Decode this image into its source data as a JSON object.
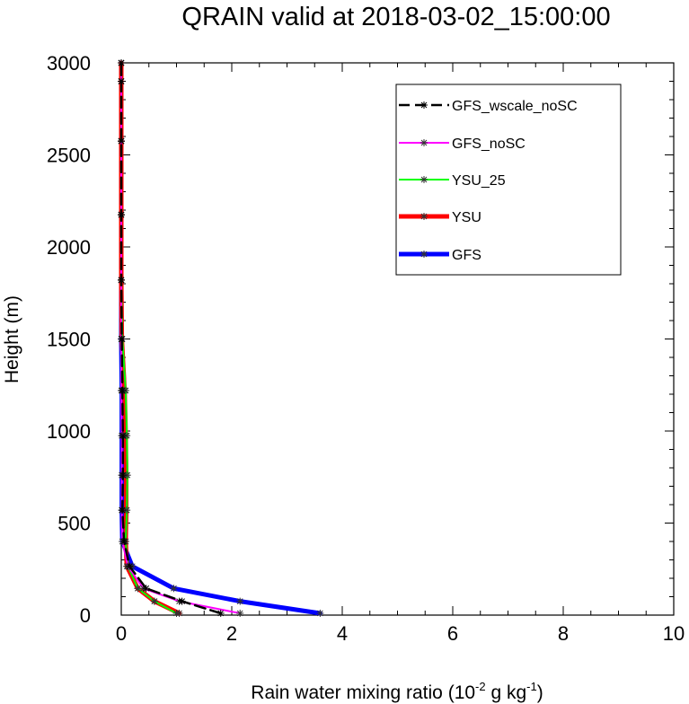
{
  "chart_data": {
    "type": "line",
    "title": "QRAIN valid at 2018-03-02_15:00:00",
    "xlabel": {
      "base": "Rain water mixing ratio (10",
      "exp1": "-2",
      "mid": " g kg",
      "exp2": "-1",
      "end": ")"
    },
    "ylabel": "Height (m)",
    "xlim": [
      0,
      10
    ],
    "ylim": [
      0,
      3000
    ],
    "xticks": [
      "0",
      "2",
      "4",
      "6",
      "8",
      "10"
    ],
    "yticks": [
      "0",
      "500",
      "1000",
      "1500",
      "2000",
      "2500",
      "3000"
    ],
    "legend_position": "top-right",
    "grid": false,
    "series": [
      {
        "name": "GFS_wscale_noSC",
        "color": "#000000",
        "width": 2.5,
        "dash": "12,6",
        "x": [
          1.8,
          1.1,
          0.45,
          0.15,
          0.05,
          0.02,
          0.03,
          0.03,
          0.02,
          0.01,
          0.0,
          0.0,
          0.0,
          0.0,
          0.0
        ],
        "y": [
          10,
          75,
          145,
          265,
          400,
          570,
          760,
          975,
          1220,
          1500,
          1820,
          2175,
          2575,
          2900,
          3000
        ]
      },
      {
        "name": "GFS_noSC",
        "color": "#ff00ff",
        "width": 2,
        "dash": "",
        "x": [
          2.15,
          1.05,
          0.4,
          0.12,
          0.02,
          0.01,
          0.01,
          0.01,
          0.0,
          0.0,
          0.0,
          0.0,
          0.0,
          0.0,
          0.0
        ],
        "y": [
          10,
          75,
          145,
          265,
          400,
          570,
          760,
          975,
          1220,
          1500,
          1820,
          2175,
          2575,
          2900,
          3000
        ]
      },
      {
        "name": "YSU_25",
        "color": "#00ff00",
        "width": 2,
        "dash": "",
        "x": [
          1.0,
          0.6,
          0.3,
          0.12,
          0.08,
          0.1,
          0.11,
          0.1,
          0.08,
          0.02,
          0.0,
          0.0,
          0.0,
          0.0,
          0.0
        ],
        "y": [
          10,
          75,
          145,
          265,
          400,
          570,
          760,
          975,
          1220,
          1500,
          1820,
          2175,
          2575,
          2900,
          3000
        ]
      },
      {
        "name": "YSU",
        "color": "#ff0000",
        "width": 5,
        "dash": "",
        "x": [
          1.05,
          0.6,
          0.3,
          0.1,
          0.08,
          0.09,
          0.09,
          0.08,
          0.06,
          0.01,
          0.0,
          0.0,
          0.0,
          0.0,
          0.0
        ],
        "y": [
          10,
          75,
          145,
          265,
          400,
          570,
          760,
          975,
          1220,
          1500,
          1820,
          2175,
          2575,
          2900,
          3000
        ]
      },
      {
        "name": "GFS",
        "color": "#0000ff",
        "width": 5,
        "dash": "",
        "x": [
          3.6,
          2.15,
          0.95,
          0.2,
          0.02,
          0.01,
          0.01,
          0.01,
          0.01,
          0.0,
          0.0,
          0.0,
          0.0,
          0.0,
          0.0
        ],
        "y": [
          10,
          75,
          145,
          265,
          400,
          570,
          760,
          975,
          1220,
          1500,
          1820,
          2175,
          2575,
          2900,
          3000
        ]
      }
    ],
    "legend_order": [
      "GFS_wscale_noSC",
      "GFS_noSC",
      "YSU_25",
      "YSU",
      "GFS"
    ]
  }
}
